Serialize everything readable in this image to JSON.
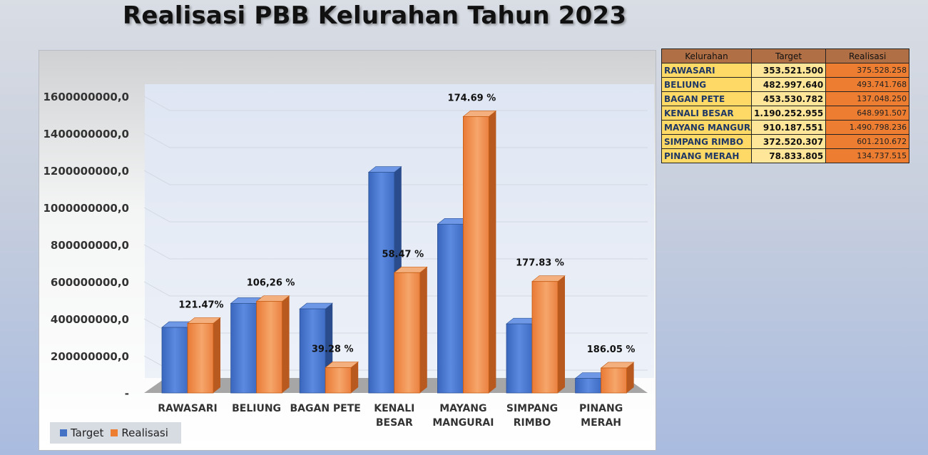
{
  "title": "Realisasi PBB Kelurahan Tahun 2023",
  "colors": {
    "target": "#4472c4",
    "realisasi": "#ed7d31"
  },
  "table": {
    "headers": [
      "Kelurahan",
      "Target",
      "Realisasi"
    ],
    "rows": [
      [
        "RAWASARI",
        "353.521.500",
        "375.528.258"
      ],
      [
        "BELIUNG",
        "482.997.640",
        "493.741.768"
      ],
      [
        "BAGAN PETE",
        "453.530.782",
        "137.048.250"
      ],
      [
        "KENALI BESAR",
        "1.190.252.955",
        "648.991.507"
      ],
      [
        "MAYANG MANGURAI",
        "910.187.551",
        "1.490.798.236"
      ],
      [
        "SIMPANG RIMBO",
        "372.520.307",
        "601.210.672"
      ],
      [
        "PINANG MERAH",
        "78.833.805",
        "134.737.515"
      ]
    ]
  },
  "chart_data": {
    "type": "bar",
    "title": "Realisasi PBB Kelurahan Tahun 2023",
    "categories": [
      [
        "RAWASARI"
      ],
      [
        "BELIUNG"
      ],
      [
        "BAGAN PETE"
      ],
      [
        "KENALI",
        "BESAR"
      ],
      [
        "MAYANG",
        "MANGURAI"
      ],
      [
        "SIMPANG",
        "RIMBO"
      ],
      [
        "PINANG",
        "MERAH"
      ]
    ],
    "series": [
      {
        "name": "Target",
        "values": [
          353521500,
          482997640,
          453530782,
          1190252955,
          910187551,
          372520307,
          78833805
        ]
      },
      {
        "name": "Realisasi",
        "values": [
          375528258,
          493741768,
          137048250,
          648991507,
          1490798236,
          601210672,
          134737515
        ]
      }
    ],
    "data_labels": [
      "121.47%",
      "106,26 %",
      "39.28 %",
      "58.47 %",
      "174.69 %",
      "177.83 %",
      "186.05 %"
    ],
    "y_ticks": [
      "-",
      "200000000,0",
      "400000000,0",
      "600000000,0",
      "800000000,0",
      "1000000000,0",
      "1200000000,0",
      "1400000000,0",
      "1600000000,0"
    ],
    "ylim": [
      0,
      1600000000
    ],
    "grid": true,
    "legend": "bottom-left",
    "style": "3d-clustered-column"
  }
}
